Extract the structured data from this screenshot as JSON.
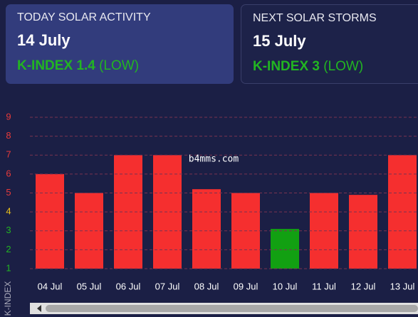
{
  "cards": [
    {
      "title": "TODAY SOLAR ACTIVITY",
      "date": "14 July",
      "kindex": "K-INDEX 1.4",
      "level": "(LOW)"
    },
    {
      "title": "NEXT SOLAR STORMS",
      "date": "15 July",
      "kindex": "K-INDEX 3",
      "level": "(LOW)"
    }
  ],
  "chart_data": {
    "type": "bar",
    "y_label": "K-INDEX",
    "watermark": "b4mms.com",
    "categories": [
      "04 Jul",
      "05 Jul",
      "06 Jul",
      "07 Jul",
      "08 Jul",
      "09 Jul",
      "10 Jul",
      "11 Jul",
      "12 Jul",
      "13 Jul"
    ],
    "values": [
      6,
      5,
      7,
      7,
      5.2,
      5,
      3.1,
      5,
      4.9,
      7
    ],
    "colors": [
      "#f52f2f",
      "#f52f2f",
      "#f52f2f",
      "#f52f2f",
      "#f52f2f",
      "#f52f2f",
      "#12a012",
      "#f52f2f",
      "#f52f2f",
      "#f52f2f"
    ],
    "ylim": [
      1,
      9
    ],
    "yticks": [
      1,
      2,
      3,
      4,
      5,
      6,
      7,
      8,
      9
    ],
    "ytick_colors": [
      "#22b522",
      "#22b522",
      "#22b522",
      "#f0c419",
      "#e83a3a",
      "#e83a3a",
      "#e83a3a",
      "#e83a3a",
      "#e83a3a"
    ],
    "grid": true
  }
}
